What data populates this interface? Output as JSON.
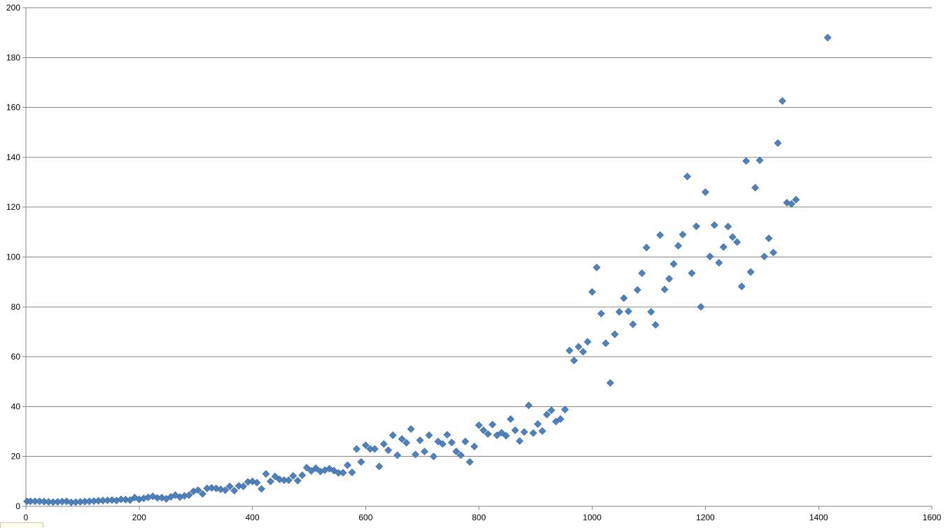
{
  "chart_data": {
    "type": "scatter",
    "title": "",
    "xlabel": "",
    "ylabel": "",
    "xlim": [
      0,
      1600
    ],
    "ylim": [
      0,
      200
    ],
    "x_ticks": [
      0,
      200,
      400,
      600,
      800,
      1000,
      1200,
      1400,
      1600
    ],
    "y_ticks": [
      0,
      20,
      40,
      60,
      80,
      100,
      120,
      140,
      160,
      180,
      200
    ],
    "grid": {
      "horizontal": true,
      "vertical": false
    },
    "legend": "none",
    "marker": "diamond",
    "marker_color": "#4F81BD",
    "series": [
      {
        "points": [
          [
            2,
            2
          ],
          [
            8,
            2
          ],
          [
            16,
            2
          ],
          [
            24,
            2
          ],
          [
            32,
            1.9
          ],
          [
            40,
            1.8
          ],
          [
            48,
            1.7
          ],
          [
            56,
            1.8
          ],
          [
            64,
            1.9
          ],
          [
            72,
            2
          ],
          [
            80,
            1.6
          ],
          [
            88,
            1.7
          ],
          [
            96,
            1.8
          ],
          [
            104,
            1.9
          ],
          [
            112,
            2
          ],
          [
            120,
            2.1
          ],
          [
            128,
            2.2
          ],
          [
            136,
            2.3
          ],
          [
            144,
            2.4
          ],
          [
            152,
            2.5
          ],
          [
            160,
            2.3
          ],
          [
            168,
            2.8
          ],
          [
            176,
            2.7
          ],
          [
            184,
            2.5
          ],
          [
            192,
            3.5
          ],
          [
            200,
            2.8
          ],
          [
            208,
            3.2
          ],
          [
            216,
            3.6
          ],
          [
            224,
            4
          ],
          [
            232,
            3.4
          ],
          [
            240,
            3.5
          ],
          [
            248,
            3
          ],
          [
            256,
            3.8
          ],
          [
            264,
            4.5
          ],
          [
            272,
            3.7
          ],
          [
            280,
            4.2
          ],
          [
            288,
            4.5
          ],
          [
            296,
            6
          ],
          [
            304,
            6.5
          ],
          [
            312,
            5
          ],
          [
            320,
            7.2
          ],
          [
            328,
            7.4
          ],
          [
            336,
            7.2
          ],
          [
            344,
            6.8
          ],
          [
            352,
            6.5
          ],
          [
            360,
            8
          ],
          [
            368,
            6.3
          ],
          [
            376,
            8.2
          ],
          [
            384,
            8
          ],
          [
            392,
            9.8
          ],
          [
            400,
            10
          ],
          [
            408,
            9.5
          ],
          [
            416,
            7
          ],
          [
            424,
            13
          ],
          [
            432,
            10
          ],
          [
            440,
            12
          ],
          [
            448,
            10.8
          ],
          [
            456,
            10.5
          ],
          [
            464,
            10.5
          ],
          [
            472,
            12.2
          ],
          [
            480,
            10.3
          ],
          [
            488,
            12.5
          ],
          [
            496,
            15.5
          ],
          [
            504,
            14.2
          ],
          [
            512,
            15.3
          ],
          [
            520,
            14
          ],
          [
            528,
            14.5
          ],
          [
            536,
            15.1
          ],
          [
            544,
            14.3
          ],
          [
            552,
            13.4
          ],
          [
            560,
            13.5
          ],
          [
            568,
            16.5
          ],
          [
            576,
            13.6
          ],
          [
            584,
            23
          ],
          [
            592,
            17.8
          ],
          [
            600,
            24.5
          ],
          [
            608,
            23
          ],
          [
            616,
            23
          ],
          [
            624,
            16
          ],
          [
            632,
            25
          ],
          [
            640,
            22.5
          ],
          [
            648,
            28.5
          ],
          [
            656,
            20.5
          ],
          [
            664,
            27
          ],
          [
            672,
            25.5
          ],
          [
            680,
            31
          ],
          [
            688,
            20.8
          ],
          [
            696,
            26.5
          ],
          [
            704,
            22
          ],
          [
            712,
            28.5
          ],
          [
            720,
            20
          ],
          [
            728,
            26
          ],
          [
            736,
            25
          ],
          [
            744,
            28.7
          ],
          [
            752,
            25.6
          ],
          [
            760,
            22
          ],
          [
            768,
            20.5
          ],
          [
            776,
            26
          ],
          [
            784,
            17.8
          ],
          [
            792,
            24
          ],
          [
            800,
            32.5
          ],
          [
            808,
            30.5
          ],
          [
            816,
            29
          ],
          [
            824,
            32.8
          ],
          [
            832,
            28.5
          ],
          [
            840,
            29.5
          ],
          [
            848,
            28.3
          ],
          [
            856,
            35
          ],
          [
            864,
            30.5
          ],
          [
            872,
            26.2
          ],
          [
            880,
            29.8
          ],
          [
            888,
            40.5
          ],
          [
            896,
            29.4
          ],
          [
            904,
            33
          ],
          [
            912,
            30.2
          ],
          [
            920,
            36.8
          ],
          [
            928,
            38.5
          ],
          [
            936,
            34
          ],
          [
            944,
            35
          ],
          [
            952,
            38.8
          ],
          [
            960,
            62.5
          ],
          [
            968,
            58.5
          ],
          [
            976,
            64
          ],
          [
            984,
            62
          ],
          [
            992,
            66
          ],
          [
            1000,
            86
          ],
          [
            1008,
            95.8
          ],
          [
            1016,
            77.3
          ],
          [
            1024,
            65.4
          ],
          [
            1032,
            49.5
          ],
          [
            1040,
            69
          ],
          [
            1048,
            78
          ],
          [
            1056,
            83.5
          ],
          [
            1064,
            78.2
          ],
          [
            1072,
            73
          ],
          [
            1080,
            86.8
          ],
          [
            1088,
            93.5
          ],
          [
            1096,
            103.8
          ],
          [
            1104,
            78
          ],
          [
            1112,
            72.8
          ],
          [
            1120,
            108.8
          ],
          [
            1128,
            87
          ],
          [
            1136,
            91.3
          ],
          [
            1144,
            97.2
          ],
          [
            1152,
            104.5
          ],
          [
            1160,
            109
          ],
          [
            1168,
            132.3
          ],
          [
            1176,
            93.5
          ],
          [
            1184,
            112.3
          ],
          [
            1192,
            80
          ],
          [
            1200,
            126
          ],
          [
            1208,
            100.2
          ],
          [
            1216,
            112.8
          ],
          [
            1224,
            97.7
          ],
          [
            1232,
            104
          ],
          [
            1240,
            112.2
          ],
          [
            1248,
            108
          ],
          [
            1256,
            106
          ],
          [
            1264,
            88.2
          ],
          [
            1272,
            138.5
          ],
          [
            1280,
            94
          ],
          [
            1288,
            127.8
          ],
          [
            1296,
            138.8
          ],
          [
            1304,
            100.2
          ],
          [
            1312,
            107.5
          ],
          [
            1320,
            101.8
          ],
          [
            1328,
            145.7
          ],
          [
            1336,
            162.6
          ],
          [
            1344,
            121.8
          ],
          [
            1352,
            121.3
          ],
          [
            1360,
            123
          ],
          [
            1416,
            188
          ]
        ]
      }
    ]
  }
}
